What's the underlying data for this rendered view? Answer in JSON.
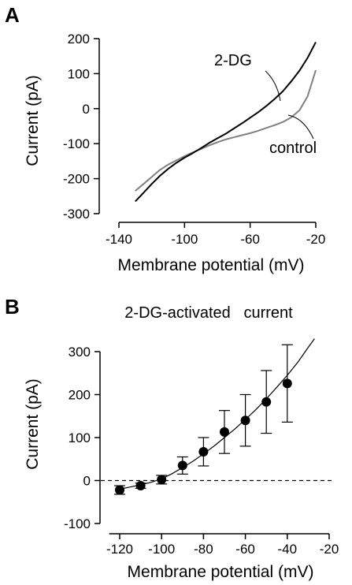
{
  "chart_data": [
    {
      "type": "line",
      "panel_label": "A",
      "xlabel": "Membrane potential (mV)",
      "ylabel": "Current (pA)",
      "xlim": [
        -140,
        -20
      ],
      "ylim": [
        -300,
        200
      ],
      "xticks": [
        -140,
        -100,
        -60,
        -20
      ],
      "yticks": [
        -300,
        -200,
        -100,
        0,
        100,
        200
      ],
      "grid": false,
      "legend": "none",
      "series": [
        {
          "name": "2-DG",
          "color": "#000000",
          "x": [
            -130,
            -125,
            -120,
            -115,
            -110,
            -105,
            -100,
            -95,
            -90,
            -85,
            -80,
            -75,
            -70,
            -65,
            -60,
            -55,
            -50,
            -45,
            -40,
            -35,
            -30,
            -25,
            -20
          ],
          "y": [
            -265,
            -240,
            -215,
            -192,
            -172,
            -155,
            -140,
            -127,
            -113,
            -98,
            -85,
            -72,
            -57,
            -42,
            -26,
            -10,
            8,
            28,
            50,
            78,
            108,
            145,
            190
          ]
        },
        {
          "name": "control",
          "color": "#808080",
          "x": [
            -130,
            -125,
            -120,
            -115,
            -110,
            -105,
            -100,
            -95,
            -90,
            -85,
            -80,
            -75,
            -70,
            -65,
            -60,
            -55,
            -50,
            -45,
            -40,
            -35,
            -30,
            -25,
            -20
          ],
          "y": [
            -235,
            -215,
            -195,
            -175,
            -160,
            -148,
            -136,
            -125,
            -115,
            -105,
            -96,
            -88,
            -82,
            -76,
            -70,
            -63,
            -55,
            -47,
            -38,
            -25,
            -5,
            35,
            110
          ]
        }
      ]
    },
    {
      "type": "scatter",
      "panel_label": "B",
      "title": "2-DG-activated   current",
      "xlabel": "Membrane potential (mV)",
      "ylabel": "Current (pA)",
      "xlim": [
        -125,
        -20
      ],
      "ylim": [
        -100,
        300
      ],
      "xticks": [
        -120,
        -100,
        -80,
        -60,
        -40,
        -20
      ],
      "yticks": [
        -100,
        0,
        100,
        200,
        300
      ],
      "grid": false,
      "legend": "none",
      "zero_line": "dashed",
      "points": {
        "x": [
          -120,
          -110,
          -100,
          -90,
          -80,
          -70,
          -60,
          -50,
          -40
        ],
        "y": [
          -22,
          -12,
          2,
          35,
          67,
          113,
          140,
          183,
          226
        ],
        "err": [
          10,
          6,
          10,
          20,
          33,
          50,
          60,
          73,
          90
        ]
      },
      "fit": {
        "x": [
          -122,
          -115,
          -110,
          -105,
          -100,
          -95,
          -90,
          -85,
          -80,
          -75,
          -70,
          -65,
          -60,
          -55,
          -50,
          -45,
          -40,
          -35,
          -30,
          -27
        ],
        "y": [
          -22,
          -15,
          -10,
          -4,
          4,
          16,
          30,
          45,
          62,
          80,
          100,
          120,
          142,
          165,
          190,
          217,
          245,
          275,
          310,
          330
        ]
      }
    }
  ]
}
